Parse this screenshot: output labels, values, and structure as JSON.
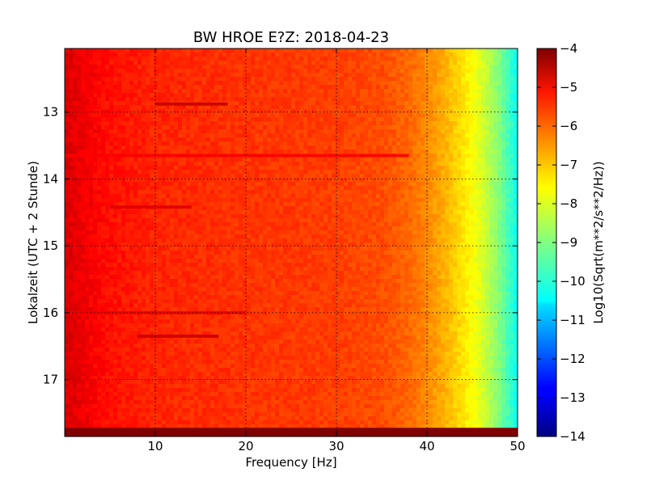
{
  "chart_data": {
    "type": "heatmap",
    "title": "BW HROE E?Z: 2018-04-23",
    "xlabel": "Frequency [Hz]",
    "ylabel": "Lokalzeit (UTC + 2 Stunde)",
    "x_range": [
      0,
      50
    ],
    "y_range": [
      17.85,
      12.05
    ],
    "x_ticks": [
      10,
      20,
      30,
      40,
      50
    ],
    "y_ticks": [
      13,
      14,
      15,
      16,
      17
    ],
    "grid": true,
    "colormap": "jet",
    "colorbar": {
      "label": "Log10(Sqrt(m**2/s**2/Hz))",
      "range": [
        -14,
        -4
      ],
      "ticks": [
        -4,
        -5,
        -6,
        -7,
        -8,
        -9,
        -10,
        -11,
        -12,
        -13,
        -14
      ]
    },
    "value_profile": {
      "frequency_hz": [
        0,
        2,
        5,
        10,
        20,
        30,
        35,
        38,
        40,
        42,
        44,
        46,
        48,
        50
      ],
      "log_amplitude": [
        -4.9,
        -5.1,
        -5.4,
        -5.6,
        -5.75,
        -5.85,
        -6.0,
        -6.25,
        -6.6,
        -7.0,
        -7.5,
        -8.1,
        -9.0,
        -10.2
      ]
    },
    "bands": [
      {
        "time": 12.88,
        "freq_range": [
          10,
          18
        ],
        "value": -4.7
      },
      {
        "time": 16.35,
        "freq_range": [
          8,
          17
        ],
        "value": -4.75
      },
      {
        "time": 14.42,
        "freq_range": [
          5,
          14
        ],
        "value": -4.95
      },
      {
        "time": 13.65,
        "freq_range": [
          0,
          38
        ],
        "value": -5.2
      },
      {
        "time": 16.0,
        "freq_range": [
          0,
          20
        ],
        "value": -5.1
      }
    ],
    "data_gap": {
      "time_range": [
        17.72,
        17.85
      ],
      "value": -4.0
    }
  }
}
